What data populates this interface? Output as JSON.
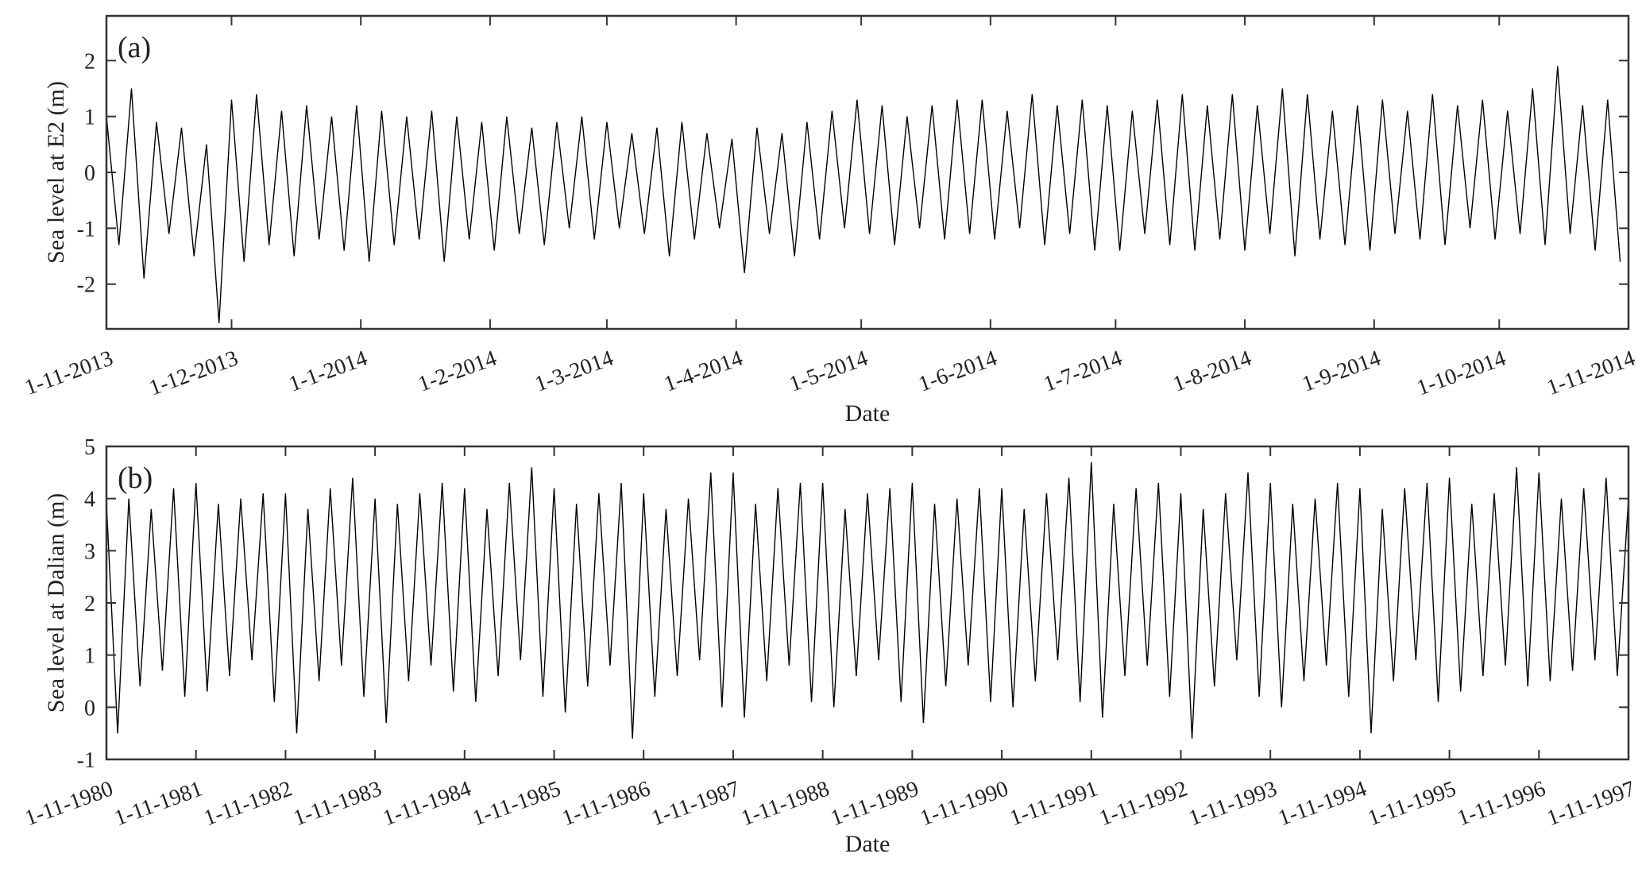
{
  "chart_data": [
    {
      "type": "line",
      "panel_label": "(a)",
      "xlabel": "Date",
      "ylabel": "Sea level at E2 (m)",
      "color": "#000000",
      "xlim": [
        0,
        365
      ],
      "xticks": [
        {
          "value": 0,
          "label": "1-11-2013"
        },
        {
          "value": 30,
          "label": "1-12-2013"
        },
        {
          "value": 61,
          "label": "1-1-2014"
        },
        {
          "value": 92,
          "label": "1-2-2014"
        },
        {
          "value": 120,
          "label": "1-3-2014"
        },
        {
          "value": 151,
          "label": "1-4-2014"
        },
        {
          "value": 181,
          "label": "1-5-2014"
        },
        {
          "value": 212,
          "label": "1-6-2014"
        },
        {
          "value": 242,
          "label": "1-7-2014"
        },
        {
          "value": 273,
          "label": "1-8-2014"
        },
        {
          "value": 304,
          "label": "1-9-2014"
        },
        {
          "value": 334,
          "label": "1-10-2014"
        },
        {
          "value": 365,
          "label": "1-11-2014"
        }
      ],
      "ylim": [
        -2.8,
        2.8
      ],
      "yticks": [
        -2,
        -1,
        0,
        1,
        2
      ],
      "x": [
        0,
        3,
        6,
        9,
        12,
        15,
        18,
        21,
        24,
        27,
        30,
        33,
        36,
        39,
        42,
        45,
        48,
        51,
        54,
        57,
        60,
        63,
        66,
        69,
        72,
        75,
        78,
        81,
        84,
        87,
        90,
        93,
        96,
        99,
        102,
        105,
        108,
        111,
        114,
        117,
        120,
        123,
        126,
        129,
        132,
        135,
        138,
        141,
        144,
        147,
        150,
        153,
        156,
        159,
        162,
        165,
        168,
        171,
        174,
        177,
        180,
        183,
        186,
        189,
        192,
        195,
        198,
        201,
        204,
        207,
        210,
        213,
        216,
        219,
        222,
        225,
        228,
        231,
        234,
        237,
        240,
        243,
        246,
        249,
        252,
        255,
        258,
        261,
        264,
        267,
        270,
        273,
        276,
        279,
        282,
        285,
        288,
        291,
        294,
        297,
        300,
        303,
        306,
        309,
        312,
        315,
        318,
        321,
        324,
        327,
        330,
        333,
        336,
        339,
        342,
        345,
        348,
        351,
        354,
        357,
        360,
        363
      ],
      "values": [
        1.0,
        -1.3,
        1.5,
        -1.9,
        0.9,
        -1.1,
        0.8,
        -1.5,
        0.5,
        -2.7,
        1.3,
        -1.6,
        1.4,
        -1.3,
        1.1,
        -1.5,
        1.2,
        -1.2,
        1.0,
        -1.4,
        1.2,
        -1.6,
        1.1,
        -1.3,
        1.0,
        -1.2,
        1.1,
        -1.6,
        1.0,
        -1.2,
        0.9,
        -1.4,
        1.0,
        -1.1,
        0.8,
        -1.3,
        0.9,
        -1.0,
        1.0,
        -1.2,
        0.9,
        -1.0,
        0.7,
        -1.1,
        0.8,
        -1.5,
        0.9,
        -1.2,
        0.7,
        -1.0,
        0.6,
        -1.8,
        0.8,
        -1.1,
        0.7,
        -1.5,
        0.9,
        -1.2,
        1.1,
        -1.0,
        1.3,
        -1.1,
        1.2,
        -1.3,
        1.0,
        -1.0,
        1.2,
        -1.2,
        1.3,
        -1.1,
        1.3,
        -1.2,
        1.1,
        -1.0,
        1.4,
        -1.3,
        1.2,
        -1.1,
        1.3,
        -1.4,
        1.2,
        -1.4,
        1.1,
        -1.1,
        1.3,
        -1.3,
        1.4,
        -1.4,
        1.2,
        -1.2,
        1.4,
        -1.4,
        1.2,
        -1.1,
        1.5,
        -1.5,
        1.4,
        -1.2,
        1.1,
        -1.3,
        1.2,
        -1.4,
        1.3,
        -1.1,
        1.1,
        -1.2,
        1.4,
        -1.3,
        1.2,
        -1.0,
        1.3,
        -1.2,
        1.1,
        -1.1,
        1.5,
        -1.3,
        1.9,
        -1.1,
        1.2,
        -1.4,
        1.3,
        -1.6
      ]
    },
    {
      "type": "line",
      "panel_label": "(b)",
      "xlabel": "Date",
      "ylabel": "Sea level at Dalian (m)",
      "color": "#000000",
      "xlim": [
        0,
        17
      ],
      "xticks": [
        {
          "value": 0,
          "label": "1-11-1980"
        },
        {
          "value": 1,
          "label": "1-11-1981"
        },
        {
          "value": 2,
          "label": "1-11-1982"
        },
        {
          "value": 3,
          "label": "1-11-1983"
        },
        {
          "value": 4,
          "label": "1-11-1984"
        },
        {
          "value": 5,
          "label": "1-11-1985"
        },
        {
          "value": 6,
          "label": "1-11-1986"
        },
        {
          "value": 7,
          "label": "1-11-1987"
        },
        {
          "value": 8,
          "label": "1-11-1988"
        },
        {
          "value": 9,
          "label": "1-11-1989"
        },
        {
          "value": 10,
          "label": "1-11-1990"
        },
        {
          "value": 11,
          "label": "1-11-1991"
        },
        {
          "value": 12,
          "label": "1-11-1992"
        },
        {
          "value": 13,
          "label": "1-11-1993"
        },
        {
          "value": 14,
          "label": "1-11-1994"
        },
        {
          "value": 15,
          "label": "1-11-1995"
        },
        {
          "value": 16,
          "label": "1-11-1996"
        },
        {
          "value": 17,
          "label": "1-11-1997"
        }
      ],
      "ylim": [
        -1,
        5
      ],
      "yticks": [
        -1,
        0,
        1,
        2,
        3,
        4,
        5
      ],
      "x": [
        0,
        0.125,
        0.25,
        0.375,
        0.5,
        0.625,
        0.75,
        0.875,
        1,
        1.125,
        1.25,
        1.375,
        1.5,
        1.625,
        1.75,
        1.875,
        2,
        2.125,
        2.25,
        2.375,
        2.5,
        2.625,
        2.75,
        2.875,
        3,
        3.125,
        3.25,
        3.375,
        3.5,
        3.625,
        3.75,
        3.875,
        4,
        4.125,
        4.25,
        4.375,
        4.5,
        4.625,
        4.75,
        4.875,
        5,
        5.125,
        5.25,
        5.375,
        5.5,
        5.625,
        5.75,
        5.875,
        6,
        6.125,
        6.25,
        6.375,
        6.5,
        6.625,
        6.75,
        6.875,
        7,
        7.125,
        7.25,
        7.375,
        7.5,
        7.625,
        7.75,
        7.875,
        8,
        8.125,
        8.25,
        8.375,
        8.5,
        8.625,
        8.75,
        8.875,
        9,
        9.125,
        9.25,
        9.375,
        9.5,
        9.625,
        9.75,
        9.875,
        10,
        10.125,
        10.25,
        10.375,
        10.5,
        10.625,
        10.75,
        10.875,
        11,
        11.125,
        11.25,
        11.375,
        11.5,
        11.625,
        11.75,
        11.875,
        12,
        12.125,
        12.25,
        12.375,
        12.5,
        12.625,
        12.75,
        12.875,
        13,
        13.125,
        13.25,
        13.375,
        13.5,
        13.625,
        13.75,
        13.875,
        14,
        14.125,
        14.25,
        14.375,
        14.5,
        14.625,
        14.75,
        14.875,
        15,
        15.125,
        15.25,
        15.375,
        15.5,
        15.625,
        15.75,
        15.875,
        16,
        16.125,
        16.25,
        16.375,
        16.5,
        16.625,
        16.75,
        16.875,
        17
      ],
      "values": [
        3.9,
        -0.5,
        4.0,
        0.4,
        3.8,
        0.7,
        4.2,
        0.2,
        4.3,
        0.3,
        3.9,
        0.6,
        4.0,
        0.9,
        4.1,
        0.1,
        4.1,
        -0.5,
        3.8,
        0.5,
        4.2,
        0.8,
        4.4,
        0.2,
        4.0,
        -0.3,
        3.9,
        0.5,
        4.1,
        0.8,
        4.3,
        0.3,
        4.2,
        0.1,
        3.8,
        0.6,
        4.3,
        0.9,
        4.6,
        0.2,
        4.2,
        -0.1,
        3.9,
        0.4,
        4.1,
        0.8,
        4.3,
        -0.6,
        4.1,
        0.2,
        3.8,
        0.6,
        4.0,
        0.9,
        4.5,
        0.0,
        4.5,
        -0.2,
        3.9,
        0.5,
        4.2,
        0.8,
        4.3,
        0.1,
        4.3,
        0.0,
        3.8,
        0.6,
        4.1,
        0.9,
        4.2,
        0.1,
        4.3,
        -0.3,
        3.9,
        0.4,
        4.0,
        0.8,
        4.2,
        0.1,
        4.2,
        0.0,
        3.8,
        0.5,
        4.1,
        0.9,
        4.4,
        0.1,
        4.7,
        -0.2,
        3.9,
        0.6,
        4.2,
        0.8,
        4.3,
        0.2,
        4.1,
        -0.6,
        3.8,
        0.4,
        4.1,
        0.9,
        4.5,
        0.2,
        4.3,
        0.0,
        3.9,
        0.5,
        4.0,
        0.8,
        4.3,
        0.2,
        4.2,
        -0.5,
        3.8,
        0.5,
        4.2,
        0.9,
        4.3,
        0.1,
        4.4,
        0.3,
        3.9,
        0.6,
        4.1,
        0.8,
        4.6,
        0.4,
        4.5,
        0.5,
        4.0,
        0.7,
        4.2,
        0.9,
        4.4,
        0.6,
        4.0
      ]
    }
  ]
}
